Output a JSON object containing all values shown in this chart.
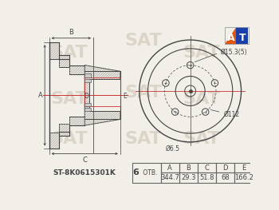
{
  "bg_color": "#f2efe9",
  "line_color": "#444444",
  "red_color": "#cc3333",
  "hatch_color": "#aaaaaa",
  "hatch_fill": "#e8e4dc",
  "table_border": "#666666",
  "part_number": "ST-8K0615301K",
  "col_headers": [
    "A",
    "B",
    "C",
    "D",
    "E"
  ],
  "col_values": [
    "344.7",
    "29.3",
    "51.8",
    "68",
    "166.2"
  ],
  "dim_d15": "Ø15.3(5)",
  "dim_d112": "Ø112",
  "dim_d65": "Ø6.5",
  "watermark_color": "#c8bfaf",
  "logo_orange": "#e05510",
  "logo_blue": "#1a3faa",
  "n_bolts": 5,
  "table_fontsize": 6.0,
  "part_fontsize": 6.5
}
